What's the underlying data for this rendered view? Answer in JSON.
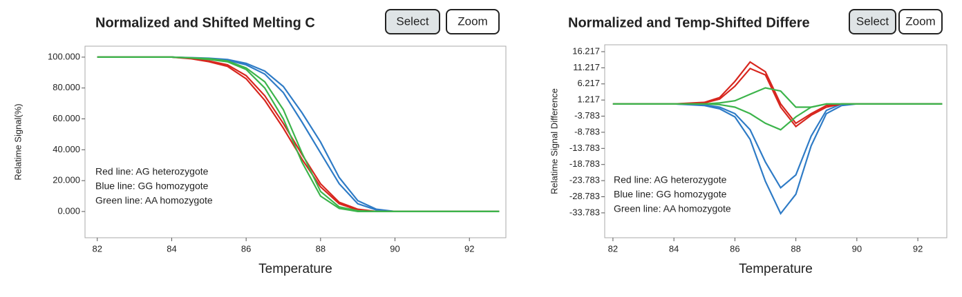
{
  "chart_data": [
    {
      "type": "line",
      "title": "Normalized and Shifted Melting C",
      "buttons": [
        "Select",
        "Zoom"
      ],
      "x_label": "Temperature",
      "y_label": "Relatime Signal(%)",
      "annotations": [
        "Red line: AG heterozygote",
        "Blue line: GG homozygote",
        "Green line: AA homozygote"
      ],
      "xlim": [
        81.67,
        92.98
      ],
      "xticks": [
        82,
        84,
        86,
        88,
        90,
        92
      ],
      "ylim": [
        -17,
        107.1
      ],
      "yticks": [
        {
          "value": 0,
          "label": "0.000"
        },
        {
          "value": 20,
          "label": "20.000"
        },
        {
          "value": 40,
          "label": "40.000"
        },
        {
          "value": 60,
          "label": "60.000"
        },
        {
          "value": 80,
          "label": "80.000"
        },
        {
          "value": 100,
          "label": "100.000"
        }
      ],
      "grid": false,
      "x": [
        82,
        83,
        84,
        84.5,
        85,
        85.5,
        86,
        86.5,
        87,
        87.5,
        88,
        88.5,
        89,
        89.5,
        90,
        91,
        92,
        92.8
      ],
      "series": [
        {
          "color": "#2e7bc6",
          "values": [
            100,
            100,
            100,
            99.5,
            99,
            98,
            95,
            89,
            77,
            58,
            38,
            18,
            5,
            1,
            0,
            0,
            0,
            0
          ]
        },
        {
          "color": "#2e7bc6",
          "values": [
            100,
            100,
            100,
            99.7,
            99.3,
            98.5,
            96,
            91,
            81,
            64,
            45,
            22,
            7,
            1.5,
            0,
            0,
            0,
            0
          ]
        },
        {
          "color": "#d7261e",
          "values": [
            100,
            100,
            100,
            99,
            97,
            94,
            86,
            72,
            54,
            34,
            16,
            5,
            1,
            0,
            0,
            0,
            0,
            0
          ]
        },
        {
          "color": "#d7261e",
          "values": [
            100,
            100,
            100,
            99.2,
            97.5,
            95,
            88,
            75,
            57,
            37,
            18,
            6,
            1.5,
            0,
            0,
            0,
            0,
            0
          ]
        },
        {
          "color": "#3cb44b",
          "values": [
            100,
            100,
            100,
            99.5,
            98.5,
            97,
            92,
            80,
            60,
            32,
            10,
            2,
            0,
            0,
            0,
            0,
            0,
            0
          ]
        },
        {
          "color": "#3cb44b",
          "values": [
            100,
            100,
            100,
            99.6,
            99,
            97.5,
            93,
            84,
            66,
            38,
            13,
            3,
            0.5,
            0,
            0,
            0,
            0,
            0
          ]
        }
      ]
    },
    {
      "type": "line",
      "title": "Normalized and Temp-Shifted Differe",
      "buttons": [
        "Select",
        "Zoom"
      ],
      "x_label": "Temperature",
      "y_label": "Relatime Signal Difference",
      "annotations": [
        "Red line: AG heterozygote",
        "Blue line: GG homozygote",
        "Green line: AA homozygote"
      ],
      "xlim": [
        81.73,
        92.95
      ],
      "xticks": [
        82,
        84,
        86,
        88,
        90,
        92
      ],
      "ylim": [
        -41.5,
        18.35
      ],
      "yticks": [
        16.217,
        11.217,
        6.217,
        1.217,
        -3.783,
        -8.783,
        -13.783,
        -18.783,
        -23.783,
        -28.783,
        -33.783
      ],
      "grid": false,
      "x": [
        82,
        83,
        84,
        85,
        85.5,
        86,
        86.5,
        87,
        87.5,
        88,
        88.5,
        89,
        89.5,
        90,
        91,
        92,
        92.8
      ],
      "series": [
        {
          "color": "#2e7bc6",
          "values": [
            0,
            0,
            0,
            -0.3,
            -1,
            -3,
            -8,
            -18,
            -26,
            -22,
            -10,
            -2,
            0,
            0,
            0,
            0,
            0
          ]
        },
        {
          "color": "#2e7bc6",
          "values": [
            0,
            0,
            0,
            -0.5,
            -1.5,
            -4,
            -11,
            -24,
            -34,
            -28,
            -13,
            -3,
            -0.5,
            0,
            0,
            0,
            0
          ]
        },
        {
          "color": "#d7261e",
          "values": [
            0,
            0,
            0,
            0.5,
            2,
            7,
            13,
            10,
            0,
            -6,
            -3,
            -0.5,
            0,
            0,
            0,
            0,
            0
          ]
        },
        {
          "color": "#d7261e",
          "values": [
            0,
            0,
            0,
            0.3,
            1.5,
            5.5,
            11,
            9,
            -1,
            -7,
            -3.5,
            -1,
            0,
            0,
            0,
            0,
            0
          ]
        },
        {
          "color": "#3cb44b",
          "values": [
            0,
            0,
            0,
            0,
            0.3,
            1,
            3,
            5,
            4,
            -1,
            -1,
            0,
            0,
            0,
            0,
            0,
            0
          ]
        },
        {
          "color": "#3cb44b",
          "values": [
            0,
            0,
            0,
            0,
            -0.2,
            -1,
            -3,
            -6,
            -8,
            -4,
            -1,
            0,
            0,
            0,
            0,
            0,
            0
          ]
        }
      ]
    }
  ]
}
